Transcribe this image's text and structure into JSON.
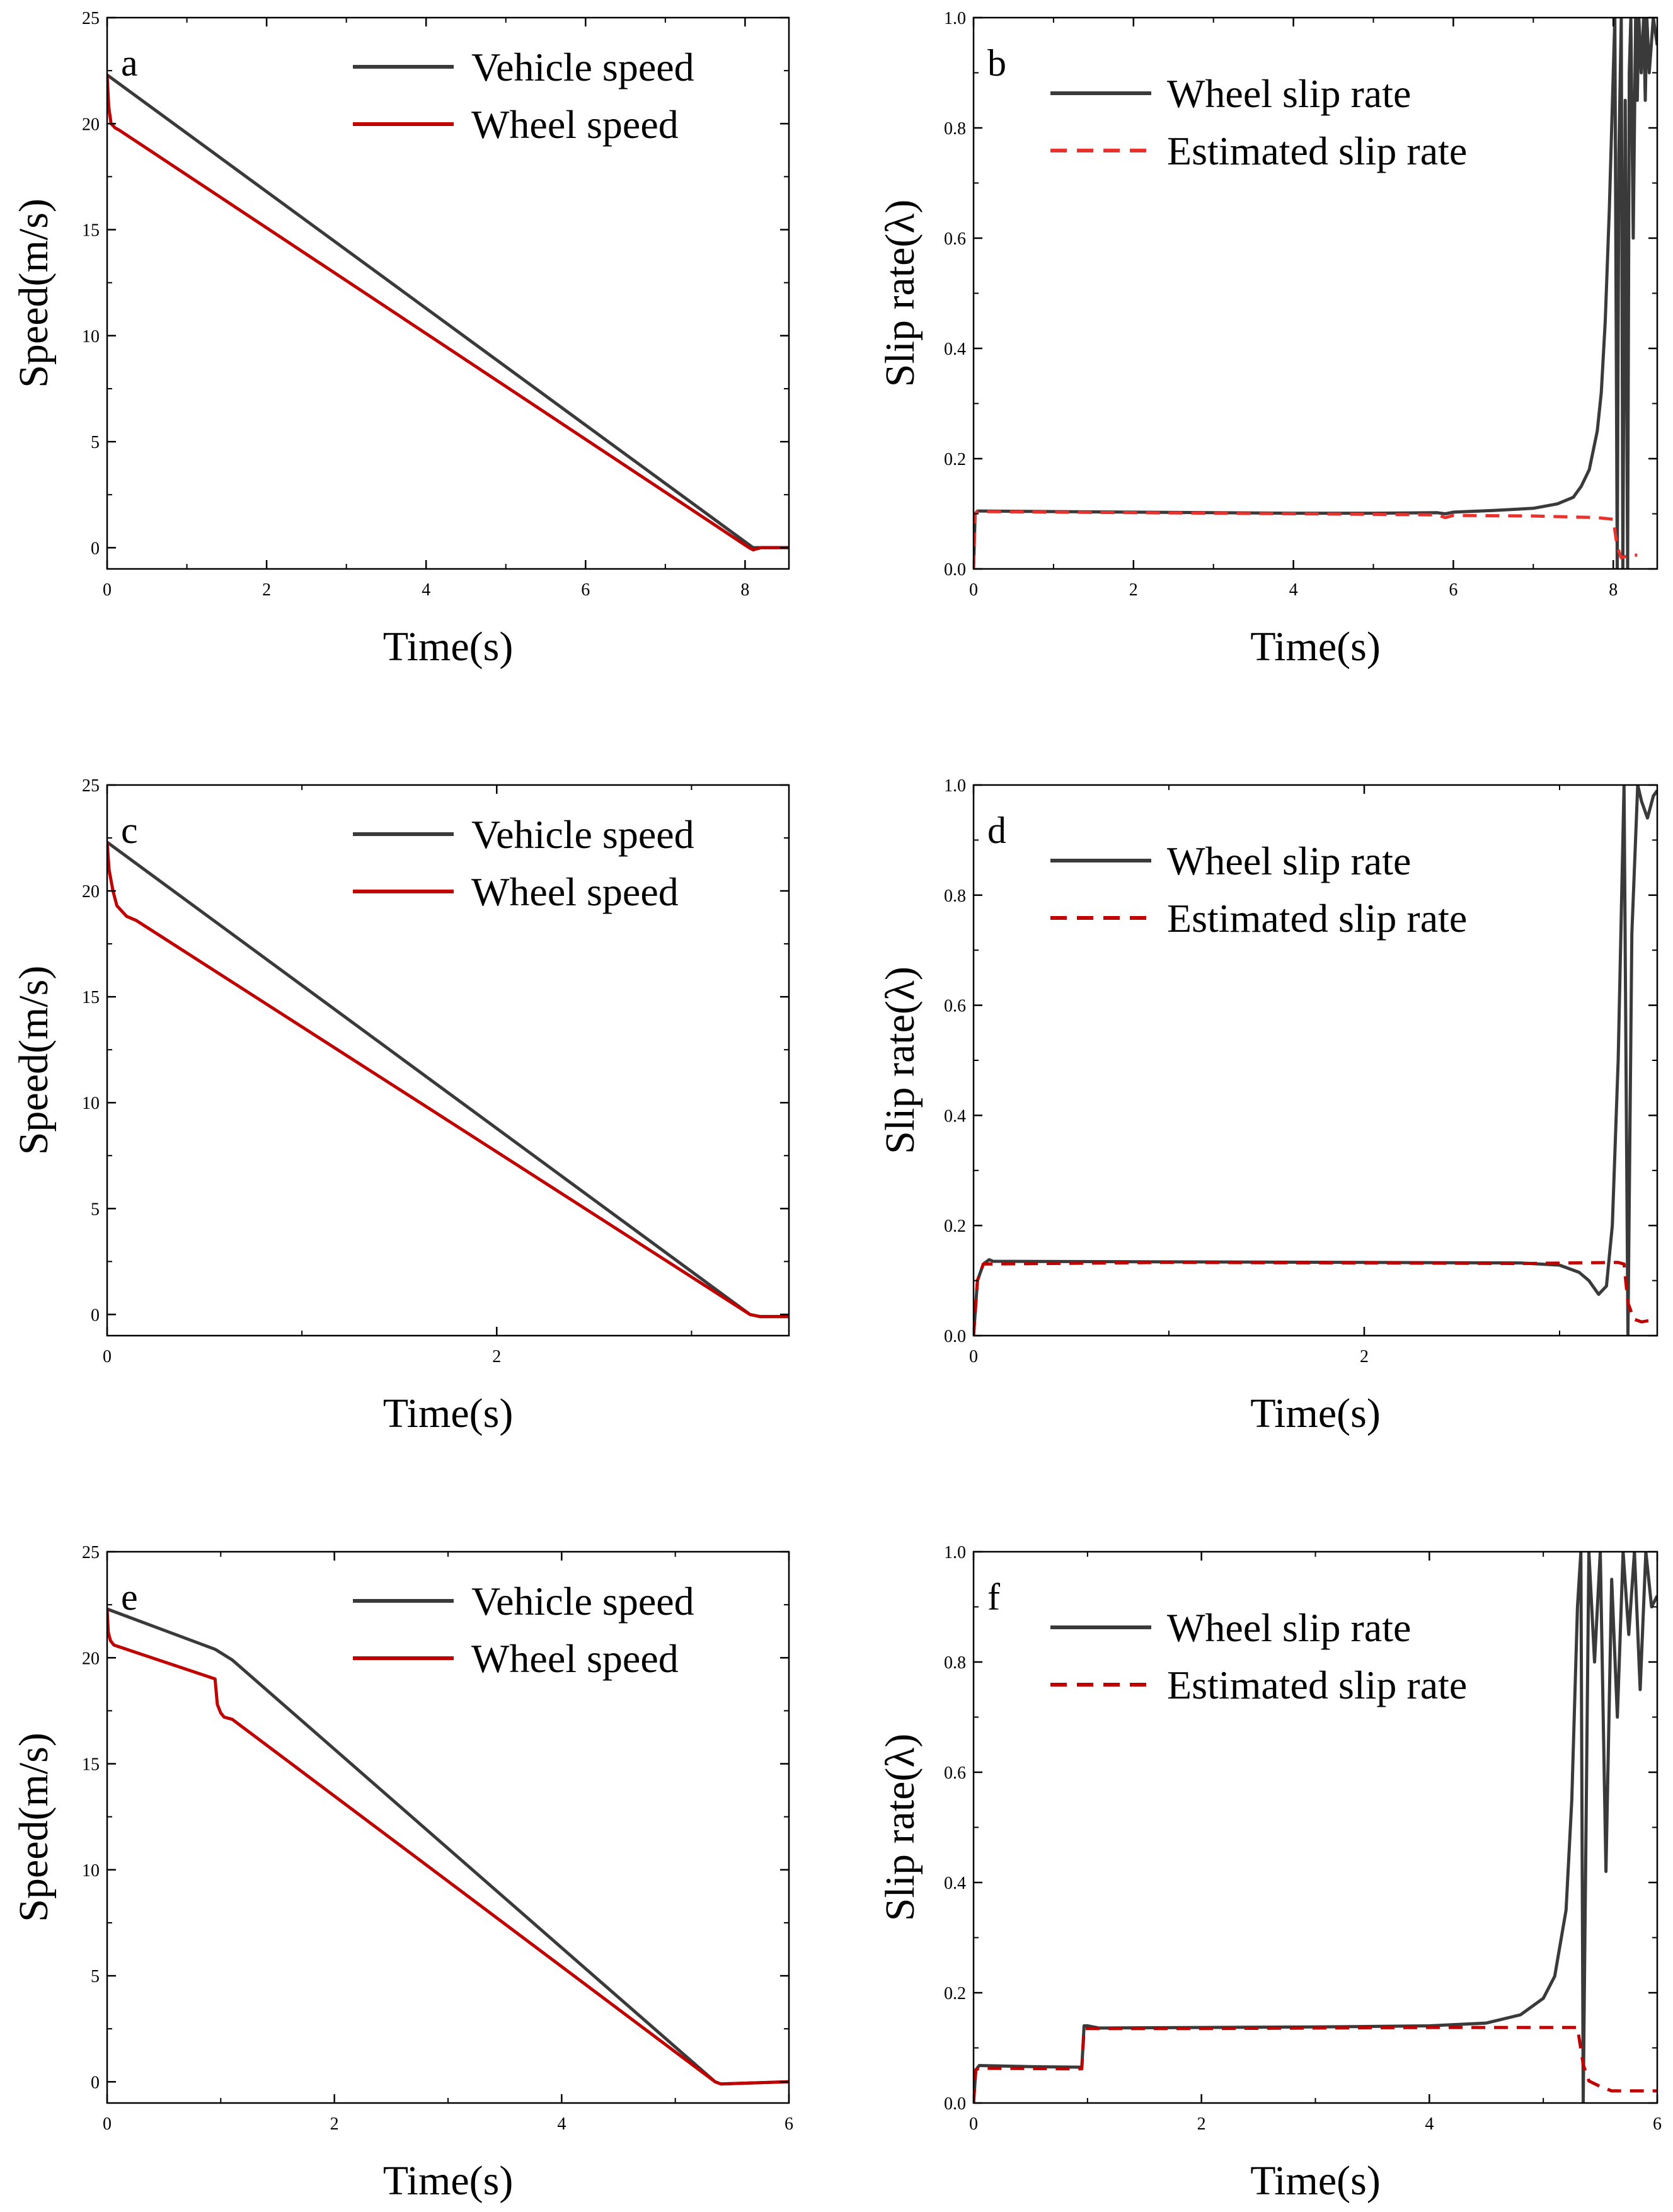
{
  "figure": {
    "colors": {
      "vehicle": "#3a3a3a",
      "wheel": "#c00000",
      "slip": "#3a3a3a",
      "est_bright": "#e8322e",
      "est_dark": "#c00000"
    }
  },
  "chart_data": [
    {
      "id": "a",
      "type": "line",
      "panel_label": "a",
      "xlabel": "Time(s)",
      "ylabel": "Speed(m/s)",
      "xlim": [
        0,
        8.55
      ],
      "ylim": [
        -1,
        25
      ],
      "xticks": [
        0,
        2,
        4,
        6,
        8
      ],
      "yticks": [
        0,
        5,
        10,
        15,
        20,
        25
      ],
      "legend_loc": "top-right",
      "series": [
        {
          "name": "Vehicle speed",
          "color": "#3a3a3a",
          "dash": false,
          "x": [
            0,
            8.1,
            8.15,
            8.55
          ],
          "y": [
            22.3,
            0,
            0,
            0
          ]
        },
        {
          "name": "Wheel speed",
          "color": "#c00000",
          "dash": false,
          "x": [
            0,
            0.02,
            0.05,
            0.1,
            0.15,
            8.05,
            8.1,
            8.2,
            8.55
          ],
          "y": [
            22.3,
            20.8,
            20.0,
            19.8,
            19.7,
            0,
            -0.1,
            0,
            0
          ]
        }
      ]
    },
    {
      "id": "b",
      "type": "line",
      "panel_label": "b",
      "xlabel": "Time(s)",
      "ylabel": "Slip rate(λ)",
      "xlim": [
        0,
        8.55
      ],
      "ylim": [
        0,
        1
      ],
      "xticks": [
        0,
        2,
        4,
        6,
        8
      ],
      "yticks": [
        0.0,
        0.2,
        0.4,
        0.6,
        0.8,
        1.0
      ],
      "legend_loc": "top-right",
      "series": [
        {
          "name": "Wheel slip rate",
          "color": "#3a3a3a",
          "dash": false,
          "x": [
            0,
            0.02,
            0.05,
            0.1,
            1,
            2,
            3,
            4,
            5,
            5.8,
            5.9,
            6.0,
            6.5,
            7.0,
            7.3,
            7.5,
            7.6,
            7.7,
            7.8,
            7.85,
            7.9,
            7.95,
            8.0,
            8.02,
            8.05,
            8.07,
            8.1,
            8.12,
            8.15,
            8.18,
            8.2,
            8.22,
            8.25,
            8.28,
            8.3,
            8.32,
            8.35,
            8.38,
            8.4,
            8.42,
            8.45,
            8.5,
            8.55
          ],
          "y": [
            0,
            0.1,
            0.105,
            0.105,
            0.104,
            0.103,
            0.102,
            0.101,
            0.101,
            0.102,
            0.1,
            0.103,
            0.106,
            0.11,
            0.118,
            0.13,
            0.15,
            0.18,
            0.25,
            0.32,
            0.45,
            0.65,
            0.9,
            1.0,
            0.0,
            0.75,
            1.0,
            0.0,
            0.85,
            0.0,
            0.9,
            1.0,
            0.6,
            1.0,
            0.85,
            1.0,
            0.9,
            1.0,
            0.85,
            1.0,
            0.9,
            1.0,
            0.95
          ]
        },
        {
          "name": "Estimated slip rate",
          "color": "#e8322e",
          "dash": true,
          "x": [
            0,
            0.02,
            0.05,
            1,
            2,
            3,
            4,
            5,
            5.8,
            5.9,
            6.0,
            7.0,
            7.8,
            8.0,
            8.05,
            8.1,
            8.2,
            8.3
          ],
          "y": [
            0,
            0.1,
            0.104,
            0.103,
            0.102,
            0.101,
            0.1,
            0.099,
            0.098,
            0.093,
            0.097,
            0.096,
            0.093,
            0.09,
            0.04,
            0.02,
            0.025,
            0.025
          ]
        }
      ]
    },
    {
      "id": "c",
      "type": "line",
      "panel_label": "c",
      "xlabel": "Time(s)",
      "ylabel": "Speed(m/s)",
      "xlim": [
        0,
        3.5
      ],
      "ylim": [
        -1,
        25
      ],
      "xticks": [
        0,
        2
      ],
      "yticks": [
        0,
        5,
        10,
        15,
        20,
        25
      ],
      "legend_loc": "top-right",
      "series": [
        {
          "name": "Vehicle speed",
          "color": "#3a3a3a",
          "dash": false,
          "x": [
            0,
            3.3,
            3.35,
            3.5
          ],
          "y": [
            22.3,
            0,
            -0.1,
            -0.1
          ]
        },
        {
          "name": "Wheel speed",
          "color": "#c00000",
          "dash": false,
          "x": [
            0,
            0.01,
            0.03,
            0.05,
            0.08,
            0.1,
            0.15,
            3.3,
            3.35,
            3.5
          ],
          "y": [
            22.3,
            21.0,
            20.0,
            19.3,
            19.0,
            18.8,
            18.6,
            0,
            -0.1,
            -0.1
          ]
        }
      ]
    },
    {
      "id": "d",
      "type": "line",
      "panel_label": "d",
      "xlabel": "Time(s)",
      "ylabel": "Slip rate(λ)",
      "xlim": [
        0,
        3.5
      ],
      "ylim": [
        0,
        1
      ],
      "xticks": [
        0,
        2
      ],
      "yticks": [
        0.0,
        0.2,
        0.4,
        0.6,
        0.8,
        1.0
      ],
      "legend_loc": "top-right",
      "series": [
        {
          "name": "Wheel slip rate",
          "color": "#3a3a3a",
          "dash": false,
          "x": [
            0,
            0.02,
            0.05,
            0.08,
            0.1,
            1,
            2,
            2.8,
            3.0,
            3.1,
            3.15,
            3.2,
            3.24,
            3.27,
            3.3,
            3.33,
            3.35,
            3.37,
            3.4,
            3.42,
            3.45,
            3.48,
            3.5
          ],
          "y": [
            0,
            0.1,
            0.13,
            0.138,
            0.135,
            0.134,
            0.133,
            0.132,
            0.128,
            0.115,
            0.1,
            0.075,
            0.09,
            0.2,
            0.5,
            1.0,
            0.0,
            0.73,
            1.0,
            0.97,
            0.94,
            0.98,
            0.99
          ]
        },
        {
          "name": "Estimated slip rate",
          "color": "#c00000",
          "dash": true,
          "x": [
            0,
            0.02,
            0.05,
            1,
            2,
            2.8,
            3.3,
            3.33,
            3.35,
            3.38,
            3.42,
            3.5
          ],
          "y": [
            0,
            0.1,
            0.13,
            0.133,
            0.132,
            0.131,
            0.133,
            0.13,
            0.06,
            0.03,
            0.025,
            0.03
          ]
        }
      ]
    },
    {
      "id": "e",
      "type": "line",
      "panel_label": "e",
      "xlabel": "Time(s)",
      "ylabel": "Speed(m/s)",
      "xlim": [
        0,
        6
      ],
      "ylim": [
        -1,
        25
      ],
      "xticks": [
        0,
        2,
        4,
        6
      ],
      "yticks": [
        0,
        5,
        10,
        15,
        20,
        25
      ],
      "legend_loc": "top-right",
      "series": [
        {
          "name": "Vehicle speed",
          "color": "#3a3a3a",
          "dash": false,
          "x": [
            0,
            0.95,
            1.1,
            5.35,
            5.4,
            6.0
          ],
          "y": [
            22.3,
            20.4,
            19.9,
            0,
            -0.1,
            0
          ]
        },
        {
          "name": "Wheel speed",
          "color": "#c00000",
          "dash": false,
          "x": [
            0,
            0.01,
            0.03,
            0.06,
            0.95,
            0.97,
            1.0,
            1.03,
            1.1,
            5.35,
            5.4,
            6.0
          ],
          "y": [
            22.3,
            21.2,
            20.8,
            20.6,
            19.0,
            17.8,
            17.4,
            17.2,
            17.1,
            0,
            -0.1,
            0
          ]
        }
      ]
    },
    {
      "id": "f",
      "type": "line",
      "panel_label": "f",
      "xlabel": "Time(s)",
      "ylabel": "Slip rate(λ)",
      "xlim": [
        0,
        6
      ],
      "ylim": [
        0,
        1
      ],
      "xticks": [
        0,
        2,
        4,
        6
      ],
      "yticks": [
        0.0,
        0.2,
        0.4,
        0.6,
        0.8,
        1.0
      ],
      "legend_loc": "top-right",
      "series": [
        {
          "name": "Wheel slip rate",
          "color": "#3a3a3a",
          "dash": false,
          "x": [
            0,
            0.02,
            0.05,
            0.5,
            0.95,
            0.97,
            1.0,
            1.1,
            2,
            3,
            4,
            4.5,
            4.8,
            5.0,
            5.1,
            5.2,
            5.25,
            5.3,
            5.33,
            5.35,
            5.4,
            5.45,
            5.5,
            5.55,
            5.6,
            5.65,
            5.7,
            5.75,
            5.8,
            5.85,
            5.9,
            5.95,
            6.0
          ],
          "y": [
            0,
            0.06,
            0.068,
            0.066,
            0.065,
            0.14,
            0.14,
            0.136,
            0.137,
            0.138,
            0.14,
            0.145,
            0.16,
            0.19,
            0.23,
            0.35,
            0.55,
            0.9,
            1.0,
            0.0,
            1.0,
            0.8,
            1.0,
            0.42,
            0.95,
            0.7,
            1.0,
            0.85,
            1.0,
            0.75,
            1.0,
            0.9,
            0.92
          ]
        },
        {
          "name": "Estimated slip rate",
          "color": "#c00000",
          "dash": true,
          "x": [
            0,
            0.02,
            0.05,
            0.95,
            0.97,
            1.1,
            2,
            3,
            4,
            5.0,
            5.3,
            5.35,
            5.4,
            5.5,
            5.6,
            6.0
          ],
          "y": [
            0,
            0.06,
            0.063,
            0.062,
            0.135,
            0.135,
            0.135,
            0.136,
            0.137,
            0.137,
            0.137,
            0.07,
            0.04,
            0.03,
            0.022,
            0.022
          ]
        }
      ]
    }
  ]
}
